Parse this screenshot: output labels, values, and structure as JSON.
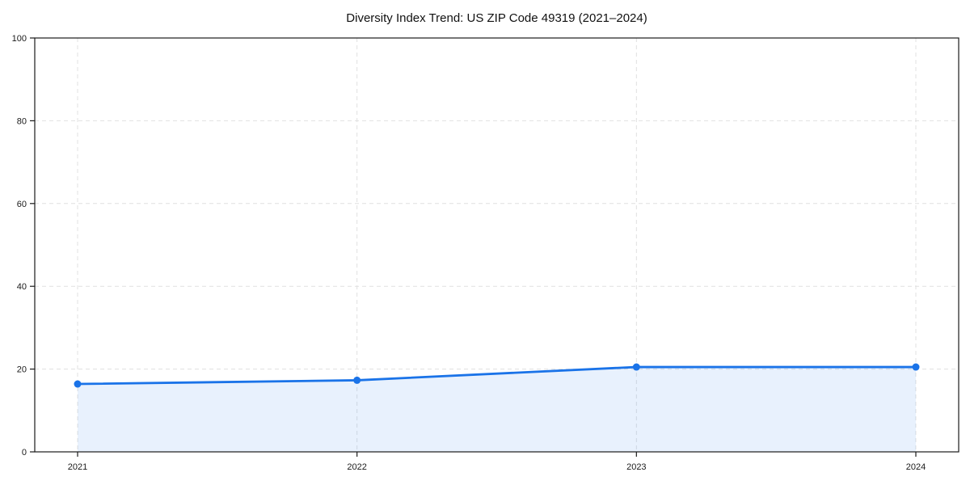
{
  "chart_data": {
    "type": "line",
    "title": "Diversity Index Trend: US ZIP Code 49319 (2021–2024)",
    "x": [
      2021,
      2022,
      2023,
      2024
    ],
    "xticks": [
      "2021",
      "2022",
      "2023",
      "2024"
    ],
    "series": [
      {
        "name": "Diversity Index",
        "values": [
          16.4,
          17.3,
          20.5,
          20.5
        ]
      }
    ],
    "xlabel": "",
    "ylabel": "",
    "ylim": [
      0,
      100
    ],
    "yticks": [
      0,
      20,
      40,
      60,
      80,
      100
    ],
    "grid": true,
    "grid_style": "dashed",
    "legend": false,
    "area_fill": true,
    "marker": "circle",
    "colors": {
      "line": "#1a73e8",
      "marker": "#1a73e8",
      "fill": "#1a73e8",
      "fill_opacity": 0.1,
      "grid": "#e0e0e0",
      "axis": "#1a1a1a",
      "text": "#1a1a1a",
      "title": "#111111",
      "background": "#ffffff"
    }
  }
}
